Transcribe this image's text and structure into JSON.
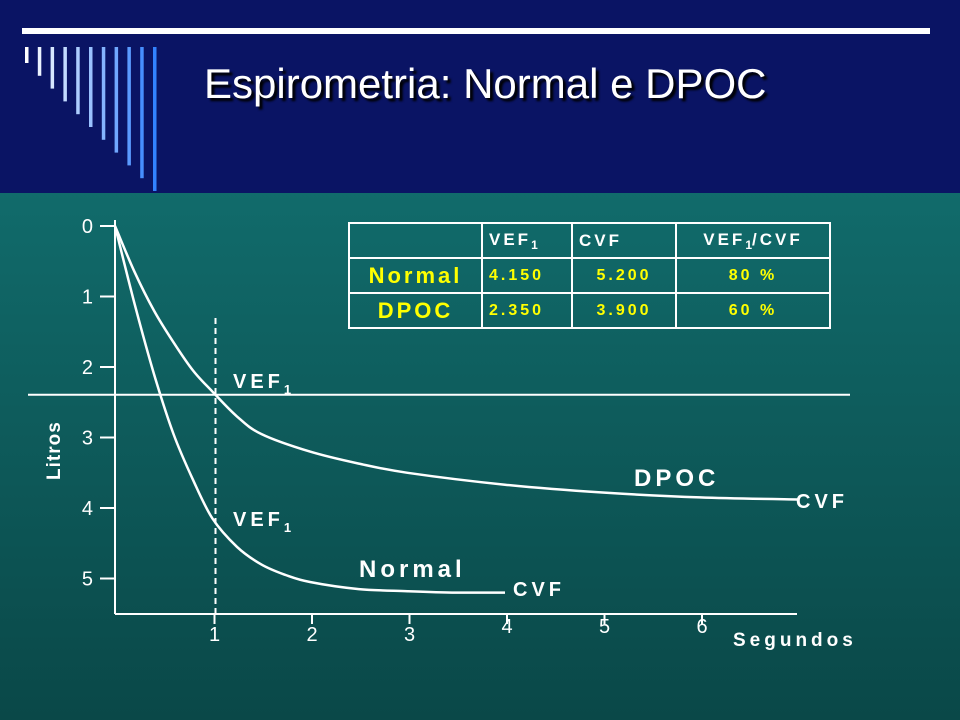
{
  "slide": {
    "title": "Espirometria:  Normal e DPOC"
  },
  "table": {
    "headers": {
      "ref_main": "VEF",
      "ref_sub": "1",
      "cvf": "CVF",
      "ratio_main": "VEF",
      "ratio_sub": "1",
      "ratio_rest": "/CVF"
    },
    "rows": [
      {
        "label": "Normal",
        "vef1": "4.150",
        "cvf": "5.200",
        "ratio": "80 %"
      },
      {
        "label": "DPOC",
        "vef1": "2.350",
        "cvf": "3.900",
        "ratio": "60 %"
      }
    ]
  },
  "chart_data": {
    "type": "line",
    "title": "",
    "xlabel": "Segundos",
    "ylabel": "Litros",
    "xlim": [
      0,
      7
    ],
    "ylim": [
      0,
      5.5
    ],
    "y_inverted": true,
    "x_ticks": [
      "1",
      "2",
      "3",
      "4",
      "5",
      "6"
    ],
    "y_ticks": [
      "0",
      "1",
      "2",
      "3",
      "4",
      "5"
    ],
    "grid": false,
    "legend": "none",
    "colors": {
      "lines": "#ffffff",
      "table_values": "#ffff00",
      "header_bg": "#0a1464"
    },
    "series": [
      {
        "name": "DPOC",
        "x": [
          0,
          0.2,
          0.4,
          0.6,
          0.8,
          1,
          1.25,
          1.5,
          2,
          2.5,
          3,
          4,
          5,
          6,
          7
        ],
        "y": [
          0,
          0.65,
          1.2,
          1.65,
          2.05,
          2.35,
          2.7,
          2.95,
          3.2,
          3.37,
          3.5,
          3.67,
          3.78,
          3.85,
          3.88
        ]
      },
      {
        "name": "Normal",
        "x": [
          0,
          0.2,
          0.4,
          0.6,
          0.8,
          1,
          1.25,
          1.5,
          1.75,
          2,
          2.5,
          3,
          3.5,
          4
        ],
        "y": [
          0,
          1.1,
          2.1,
          2.95,
          3.6,
          4.15,
          4.55,
          4.8,
          4.95,
          5.05,
          5.15,
          5.18,
          5.2,
          5.2
        ]
      }
    ],
    "reference_lines": [
      {
        "axis": "x",
        "value": 1,
        "style": "dashed"
      },
      {
        "axis": "y",
        "value": 2.4,
        "style": "solid"
      }
    ],
    "annotations": {
      "vef1_upper": {
        "main": "VEF",
        "sub": "1"
      },
      "vef1_lower": {
        "main": "VEF",
        "sub": "1"
      },
      "dpoc_label": "DPOC",
      "normal_label": "Normal",
      "cvf_dpoc": "CVF",
      "cvf_normal": "CVF"
    }
  }
}
